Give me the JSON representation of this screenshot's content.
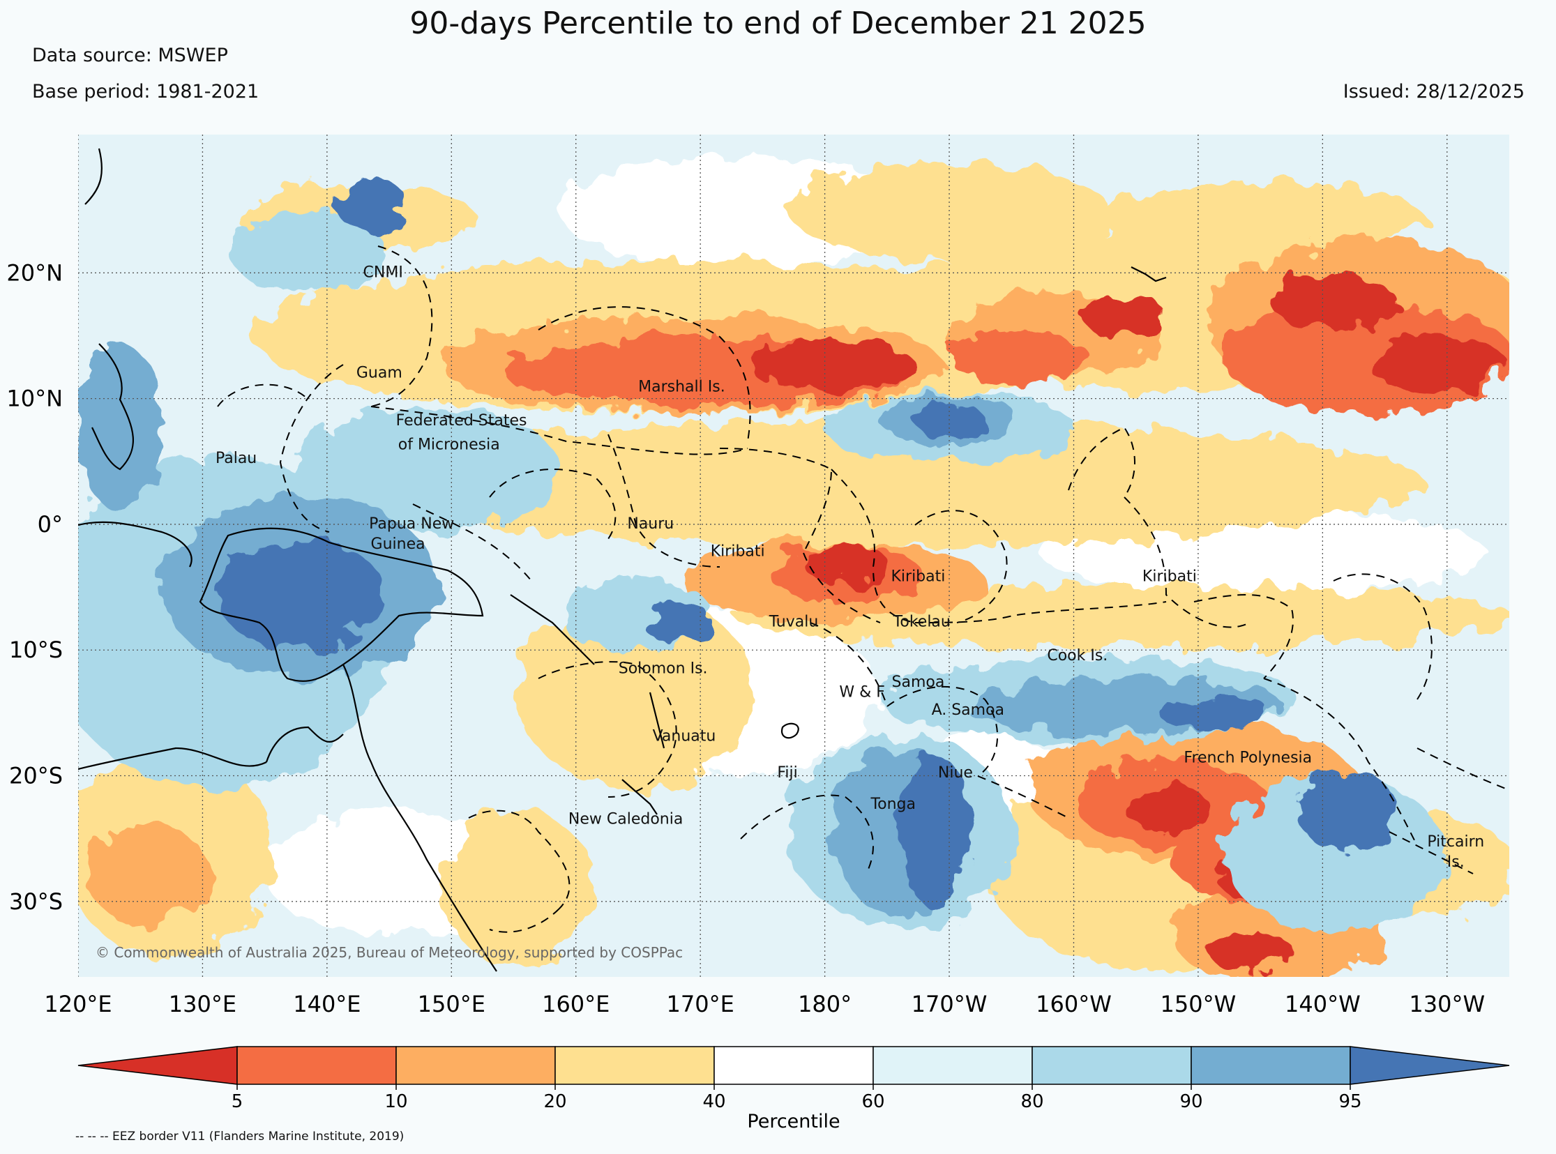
{
  "title": "90-days Percentile to end of December 21 2025",
  "header": {
    "data_source": "Data source: MSWEP",
    "base_period": "Base period: 1981-2021",
    "issued": "Issued: 28/12/2025"
  },
  "map": {
    "lon_range": [
      120,
      235
    ],
    "lat_range": [
      -36,
      31
    ],
    "lon_ticks": [
      {
        "lon": 120,
        "label": "120°E"
      },
      {
        "lon": 130,
        "label": "130°E"
      },
      {
        "lon": 140,
        "label": "140°E"
      },
      {
        "lon": 150,
        "label": "150°E"
      },
      {
        "lon": 160,
        "label": "160°E"
      },
      {
        "lon": 170,
        "label": "170°E"
      },
      {
        "lon": 180,
        "label": "180°"
      },
      {
        "lon": 190,
        "label": "170°W"
      },
      {
        "lon": 200,
        "label": "160°W"
      },
      {
        "lon": 210,
        "label": "150°W"
      },
      {
        "lon": 220,
        "label": "140°W"
      },
      {
        "lon": 230,
        "label": "130°W"
      }
    ],
    "lat_ticks": [
      {
        "lat": 20,
        "label": "20°N"
      },
      {
        "lat": 10,
        "label": "10°N"
      },
      {
        "lat": 0,
        "label": "0°"
      },
      {
        "lat": -10,
        "label": "10°S"
      },
      {
        "lat": -20,
        "label": "20°S"
      },
      {
        "lat": -30,
        "label": "30°S"
      }
    ],
    "places": [
      {
        "name": "CNMI",
        "lon": 144.5,
        "lat": 20
      },
      {
        "name": "Guam",
        "lon": 144.2,
        "lat": 12
      },
      {
        "name": "Federated States",
        "lon": 150.8,
        "lat": 8.2
      },
      {
        "name": "of Micronesia",
        "lon": 149.8,
        "lat": 6.3
      },
      {
        "name": "Palau",
        "lon": 132.7,
        "lat": 5.2
      },
      {
        "name": "Marshall Is.",
        "lon": 168.5,
        "lat": 10.9
      },
      {
        "name": "Papua New",
        "lon": 146.8,
        "lat": 0
      },
      {
        "name": "Guinea",
        "lon": 145.7,
        "lat": -1.6
      },
      {
        "name": "Nauru",
        "lon": 166,
        "lat": 0
      },
      {
        "name": "Kiribati",
        "lon": 173,
        "lat": -2.2
      },
      {
        "name": "Kiribati",
        "lon": 187.5,
        "lat": -4.2
      },
      {
        "name": "Kiribati",
        "lon": 207.7,
        "lat": -4.2
      },
      {
        "name": "Tuvalu",
        "lon": 177.5,
        "lat": -7.8
      },
      {
        "name": "Tokelau",
        "lon": 187.8,
        "lat": -7.8
      },
      {
        "name": "Cook Is.",
        "lon": 200.3,
        "lat": -10.5
      },
      {
        "name": "Solomon Is.",
        "lon": 167,
        "lat": -11.5
      },
      {
        "name": "Samoa",
        "lon": 187.5,
        "lat": -12.6
      },
      {
        "name": "W & F",
        "lon": 183,
        "lat": -13.4
      },
      {
        "name": "A. Samoa",
        "lon": 191.5,
        "lat": -14.8
      },
      {
        "name": "Vanuatu",
        "lon": 168.7,
        "lat": -16.9
      },
      {
        "name": "French Polynesia",
        "lon": 214,
        "lat": -18.6
      },
      {
        "name": "Fiji",
        "lon": 177,
        "lat": -19.8
      },
      {
        "name": "Niue",
        "lon": 190.5,
        "lat": -19.8
      },
      {
        "name": "Tonga",
        "lon": 185.5,
        "lat": -22.3
      },
      {
        "name": "New Caledonia",
        "lon": 164,
        "lat": -23.5
      },
      {
        "name": "Pitcairn",
        "lon": 230.7,
        "lat": -25.3
      },
      {
        "name": "Is.",
        "lon": 230.7,
        "lat": -26.9
      }
    ],
    "copyright": "© Commonwealth of Australia 2025, Bureau of Meteorology, supported by COSPPac"
  },
  "colorbar": {
    "label": "Percentile",
    "colors": [
      "#d73027",
      "#f46d43",
      "#fdae61",
      "#fee090",
      "#ffffff",
      "#e0f3f8",
      "#abd9e9",
      "#74add1",
      "#4575b4"
    ],
    "ticks": [
      "5",
      "10",
      "20",
      "40",
      "60",
      "80",
      "90",
      "95"
    ]
  },
  "footnote": "-- -- -- EEZ border V11 (Flanders Marine Institute, 2019)"
}
